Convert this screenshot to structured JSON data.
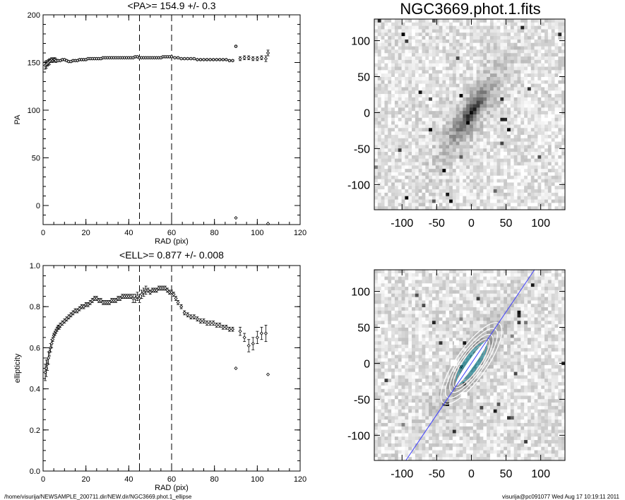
{
  "footer": {
    "path": "/home/visurija/NEWSAMPLE_200711.dir/NEW.dir/NGC3669.phot.1_ellipse",
    "user_time": "visurija@pc091077  Wed Aug 17 10:19:11 2011"
  },
  "chart_data": [
    {
      "type": "scatter",
      "title": "<PA>= 154.9 +/-   0.3",
      "xlabel": "RAD (pix)",
      "ylabel": "PA",
      "xlim": [
        0,
        120
      ],
      "ylim": [
        -20,
        200
      ],
      "xticks": [
        "0",
        "20",
        "40",
        "60",
        "80",
        "100",
        "120"
      ],
      "yticks": [
        "0",
        "50",
        "100",
        "150",
        "200"
      ],
      "vlines": [
        45,
        60
      ],
      "marker": "diamond",
      "series": [
        {
          "x": [
            1.0,
            1.5,
            2.0,
            2.5,
            3.0,
            3.5,
            4.0,
            4.5,
            5.0,
            5.5,
            6.0,
            7.0,
            8.0,
            9.0,
            10.0,
            11.0,
            12.0,
            13.0,
            14.0,
            15.0,
            16.0,
            17.0,
            18.0,
            19.0,
            20.0,
            21.0,
            22.0,
            23.0,
            24.0,
            25.0,
            26.0,
            27.0,
            28.0,
            29.0,
            30.0,
            31.0,
            32.0,
            33.0,
            34.0,
            35.0,
            36.0,
            37.0,
            38.0,
            39.0,
            40.0,
            41.0,
            42.0,
            43.0,
            44.0,
            45.0,
            46.0,
            47.0,
            48.0,
            49.0,
            50.0,
            51.0,
            52.0,
            53.0,
            54.0,
            55.0,
            56.0,
            57.0,
            58.0,
            59.0,
            60.0,
            61.5,
            63.0,
            64.5,
            66.0,
            67.5,
            69.0,
            70.5,
            72.0,
            73.5,
            75.0,
            76.5,
            78.0,
            79.5,
            81.0,
            82.5,
            84.0,
            85.5,
            87.0,
            88.5,
            90.0,
            92.0,
            94.0,
            96.0,
            98.0,
            100.0,
            102.0,
            104.0,
            105.0
          ],
          "y": [
            147,
            148,
            149,
            150,
            151,
            152,
            153,
            152,
            153,
            153,
            152,
            152,
            152,
            153,
            153,
            152,
            151,
            151,
            152,
            152,
            152,
            153,
            153,
            153,
            153,
            154,
            154,
            154,
            154,
            154,
            154,
            154,
            155,
            155,
            155,
            155,
            155,
            155,
            155,
            155,
            155,
            155,
            155,
            155,
            155,
            155,
            155,
            156,
            156,
            155,
            155,
            155,
            155,
            155,
            155,
            155,
            155,
            155,
            155,
            155,
            156,
            156,
            156,
            156,
            156,
            155,
            155,
            154,
            154,
            154,
            154,
            154,
            153,
            153,
            153,
            153,
            153,
            153,
            153,
            153,
            153,
            153,
            152,
            152,
            167,
            154,
            155,
            155,
            154,
            154,
            155,
            154,
            160
          ],
          "errors": [
            4,
            4,
            3,
            3,
            3,
            2,
            2,
            2,
            2,
            2,
            2,
            1,
            1,
            1,
            1,
            1,
            1,
            1,
            1,
            1,
            1,
            1,
            1,
            1,
            1,
            1,
            1,
            1,
            1,
            1,
            1,
            1,
            1,
            1,
            1,
            1,
            1,
            1,
            1,
            1,
            1,
            1,
            1,
            1,
            1,
            1,
            1,
            1,
            1,
            1,
            1,
            1,
            1,
            1,
            1,
            1,
            1,
            1,
            1,
            1,
            1,
            1,
            1,
            1,
            1,
            1,
            1,
            1,
            1,
            1,
            1,
            1,
            1,
            1,
            1,
            1,
            1,
            1,
            1,
            1,
            1,
            1,
            1,
            1,
            1,
            2,
            2,
            2,
            2,
            2,
            2,
            3,
            3
          ]
        },
        {
          "name": "outliers",
          "x": [
            90,
            105
          ],
          "y": [
            -13,
            -19
          ]
        }
      ]
    },
    {
      "type": "scatter",
      "title": "<ELL>= 0.877 +/-  0.008",
      "xlabel": "RAD (pix)",
      "ylabel": "ellipticity",
      "xlim": [
        0,
        120
      ],
      "ylim": [
        0.0,
        1.0
      ],
      "xticks": [
        "0",
        "20",
        "40",
        "60",
        "80",
        "100",
        "120"
      ],
      "yticks": [
        "0.0",
        "0.2",
        "0.4",
        "0.6",
        "0.8",
        "1.0"
      ],
      "vlines": [
        45,
        60
      ],
      "marker": "diamond",
      "series": [
        {
          "x": [
            1.0,
            1.5,
            2.0,
            2.5,
            3.0,
            3.5,
            4.0,
            4.5,
            5.0,
            5.5,
            6.0,
            6.5,
            7.0,
            7.5,
            8.0,
            9.0,
            10.0,
            11.0,
            12.0,
            13.0,
            14.0,
            15.0,
            16.0,
            17.0,
            18.0,
            19.0,
            20.0,
            21.0,
            22.0,
            23.0,
            24.0,
            25.0,
            26.0,
            27.0,
            28.0,
            29.0,
            30.0,
            31.0,
            32.0,
            33.0,
            34.0,
            35.0,
            36.0,
            37.0,
            38.0,
            39.0,
            40.0,
            41.0,
            42.0,
            43.0,
            44.0,
            45.0,
            46.0,
            47.0,
            48.0,
            49.0,
            50.0,
            51.0,
            52.0,
            53.0,
            54.0,
            55.0,
            56.0,
            57.0,
            58.0,
            59.0,
            60.0,
            61.0,
            62.0,
            63.0,
            64.5,
            66.0,
            67.5,
            69.0,
            70.5,
            72.0,
            73.5,
            75.0,
            76.5,
            78.0,
            79.5,
            81.0,
            82.5,
            84.0,
            85.5,
            87.0,
            88.5,
            92.0,
            94.0,
            96.0,
            98.0,
            100.0,
            102.0,
            104.0
          ],
          "y": [
            0.48,
            0.5,
            0.52,
            0.55,
            0.58,
            0.6,
            0.62,
            0.64,
            0.66,
            0.67,
            0.68,
            0.69,
            0.7,
            0.7,
            0.71,
            0.72,
            0.73,
            0.74,
            0.75,
            0.76,
            0.77,
            0.78,
            0.78,
            0.79,
            0.8,
            0.8,
            0.81,
            0.81,
            0.82,
            0.83,
            0.84,
            0.84,
            0.83,
            0.83,
            0.82,
            0.82,
            0.82,
            0.82,
            0.83,
            0.83,
            0.83,
            0.84,
            0.84,
            0.85,
            0.85,
            0.85,
            0.85,
            0.85,
            0.84,
            0.84,
            0.85,
            0.84,
            0.86,
            0.87,
            0.88,
            0.88,
            0.87,
            0.88,
            0.88,
            0.88,
            0.89,
            0.89,
            0.89,
            0.89,
            0.88,
            0.87,
            0.87,
            0.86,
            0.84,
            0.82,
            0.8,
            0.77,
            0.76,
            0.75,
            0.75,
            0.74,
            0.73,
            0.73,
            0.72,
            0.72,
            0.72,
            0.71,
            0.71,
            0.7,
            0.7,
            0.69,
            0.69,
            0.68,
            0.65,
            0.61,
            0.62,
            0.65,
            0.67,
            0.67
          ],
          "errors": [
            0.04,
            0.04,
            0.03,
            0.03,
            0.02,
            0.02,
            0.02,
            0.01,
            0.01,
            0.01,
            0.01,
            0.01,
            0.01,
            0.01,
            0.01,
            0.01,
            0.01,
            0.01,
            0.01,
            0.01,
            0.01,
            0.01,
            0.01,
            0.01,
            0.01,
            0.01,
            0.01,
            0.01,
            0.01,
            0.01,
            0.01,
            0.01,
            0.01,
            0.01,
            0.01,
            0.01,
            0.01,
            0.01,
            0.01,
            0.01,
            0.01,
            0.01,
            0.01,
            0.01,
            0.01,
            0.01,
            0.01,
            0.01,
            0.02,
            0.02,
            0.02,
            0.02,
            0.02,
            0.02,
            0.02,
            0.01,
            0.01,
            0.01,
            0.01,
            0.01,
            0.01,
            0.01,
            0.01,
            0.01,
            0.01,
            0.01,
            0.01,
            0.01,
            0.01,
            0.01,
            0.01,
            0.01,
            0.01,
            0.01,
            0.01,
            0.01,
            0.01,
            0.01,
            0.01,
            0.01,
            0.01,
            0.01,
            0.01,
            0.01,
            0.01,
            0.01,
            0.01,
            0.02,
            0.02,
            0.03,
            0.03,
            0.03,
            0.03,
            0.04
          ]
        },
        {
          "name": "outliers",
          "x": [
            90,
            105
          ],
          "y": [
            0.5,
            0.47
          ]
        }
      ]
    },
    {
      "type": "heatmap",
      "title": "NGC3669.phot.1.fits",
      "xlim": [
        -140,
        135
      ],
      "ylim": [
        -135,
        130
      ],
      "xticks": [
        "-100",
        "-50",
        "0",
        "50",
        "100"
      ],
      "yticks": [
        "-100",
        "-50",
        "0",
        "50",
        "100"
      ],
      "image": "galaxy-raw",
      "colors": {
        "min": "#ffffff",
        "max": "#000000"
      }
    },
    {
      "type": "heatmap",
      "title": "",
      "xlim": [
        -140,
        135
      ],
      "ylim": [
        -135,
        130
      ],
      "xticks": [
        "-100",
        "-50",
        "0",
        "50",
        "100"
      ],
      "yticks": [
        "-100",
        "-50",
        "0",
        "50",
        "100"
      ],
      "image": "galaxy-model-contours",
      "colors": {
        "line": "#3f3fff",
        "contour_inner": "#2aa6b8",
        "contour_outer": "#ffffff"
      }
    }
  ]
}
